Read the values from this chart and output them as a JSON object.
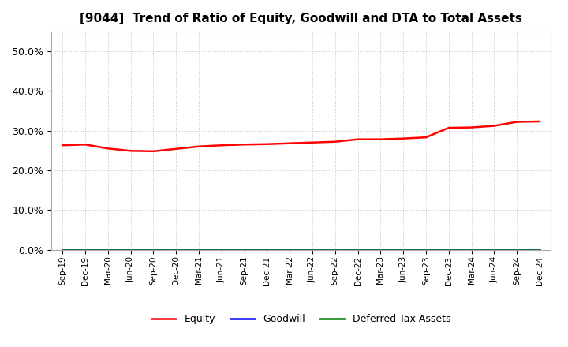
{
  "title": "[9044]  Trend of Ratio of Equity, Goodwill and DTA to Total Assets",
  "x_labels": [
    "Sep-19",
    "Dec-19",
    "Mar-20",
    "Jun-20",
    "Sep-20",
    "Dec-20",
    "Mar-21",
    "Jun-21",
    "Sep-21",
    "Dec-21",
    "Mar-22",
    "Jun-22",
    "Sep-22",
    "Dec-22",
    "Mar-23",
    "Jun-23",
    "Sep-23",
    "Dec-23",
    "Mar-24",
    "Jun-24",
    "Sep-24",
    "Dec-24"
  ],
  "equity": [
    0.263,
    0.265,
    0.255,
    0.249,
    0.248,
    0.254,
    0.26,
    0.263,
    0.265,
    0.266,
    0.268,
    0.27,
    0.272,
    0.278,
    0.278,
    0.28,
    0.283,
    0.307,
    0.308,
    0.312,
    0.322,
    0.323
  ],
  "goodwill": [
    0.0,
    0.0,
    0.0,
    0.0,
    0.0,
    0.0,
    0.0,
    0.0,
    0.0,
    0.0,
    0.0,
    0.0,
    0.0,
    0.0,
    0.0,
    0.0,
    0.0,
    0.0,
    0.0,
    0.0,
    0.0,
    0.0
  ],
  "dta": [
    0.0,
    0.0,
    0.0,
    0.0,
    0.0,
    0.0,
    0.0,
    0.0,
    0.0,
    0.0,
    0.0,
    0.0,
    0.0,
    0.0,
    0.0,
    0.0,
    0.0,
    0.0,
    0.0,
    0.0,
    0.0,
    0.0
  ],
  "equity_color": "#FF0000",
  "goodwill_color": "#0000FF",
  "dta_color": "#008000",
  "ylim": [
    0.0,
    0.55
  ],
  "yticks": [
    0.0,
    0.1,
    0.2,
    0.3,
    0.4,
    0.5
  ],
  "background_color": "#FFFFFF",
  "plot_bg_color": "#FFFFFF",
  "grid_color": "#BBBBBB",
  "title_fontsize": 11,
  "legend_labels": [
    "Equity",
    "Goodwill",
    "Deferred Tax Assets"
  ]
}
